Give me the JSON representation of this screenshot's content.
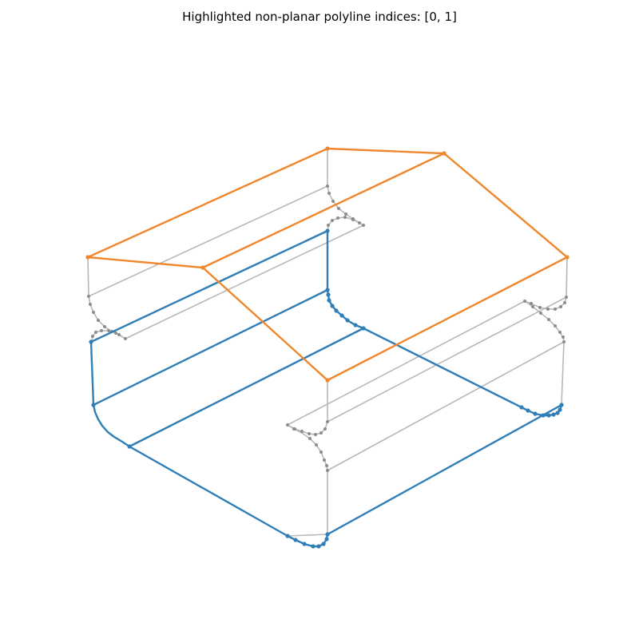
{
  "figure": {
    "title": "Highlighted non-planar polyline indices: [0, 1]"
  },
  "colors": {
    "highlight_0": "#2f7eb7",
    "highlight_1": "#f0862c",
    "background_edges": "#b8b8b8",
    "background_points": "#8c8c8c"
  }
}
